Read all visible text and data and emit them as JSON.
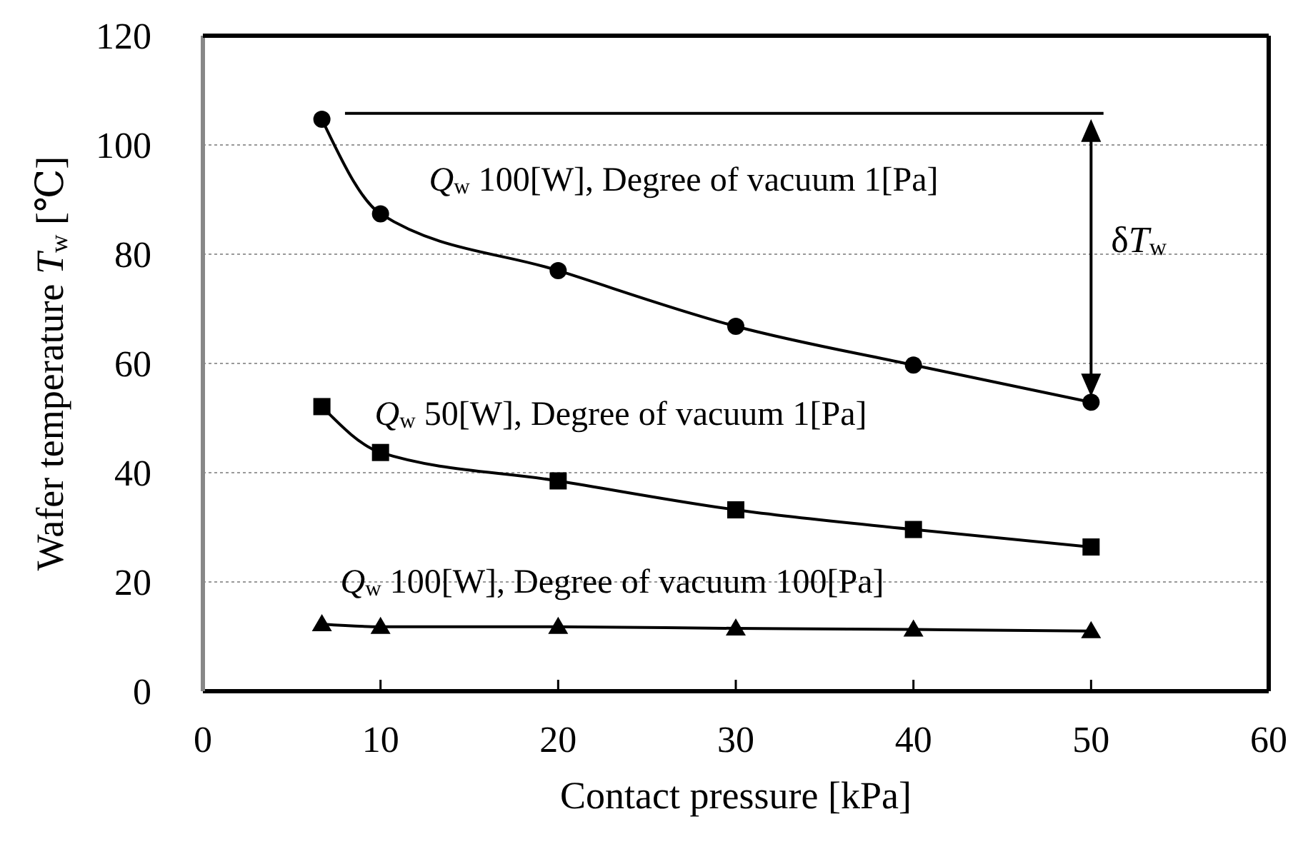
{
  "chart_data": {
    "type": "line",
    "xlabel": "Contact pressure [kPa]",
    "ylabel": "Wafer temperature T$_{w}$ [℃]",
    "xlim": [
      0,
      60
    ],
    "xticks": [
      0,
      10,
      20,
      30,
      40,
      50,
      60
    ],
    "ylim": [
      0,
      120
    ],
    "yticks": [
      0,
      20,
      40,
      60,
      80,
      100,
      120
    ],
    "grid": "y",
    "line_style": "solid",
    "series": [
      {
        "name": "Q$_{w}$ 100[W], Degree of vacuum 1[Pa]",
        "color": "#000000",
        "marker": "circle",
        "x": [
          6.7,
          10,
          20,
          30,
          40,
          50
        ],
        "values": [
          104.7,
          87.4,
          77,
          66.8,
          59.7,
          52.9
        ]
      },
      {
        "name": "Q$_{w}$ 50[W], Degree of vacuum 1[Pa]",
        "color": "#000000",
        "marker": "square",
        "x": [
          6.7,
          10,
          20,
          30,
          40,
          50
        ],
        "values": [
          52.1,
          43.7,
          38.5,
          33.2,
          29.6,
          26.4
        ]
      },
      {
        "name": "Q$_{w}$ 100[W], Degree of vacuum 100[Pa]",
        "color": "#000000",
        "marker": "triangle",
        "x": [
          6.7,
          10,
          20,
          30,
          40,
          50
        ],
        "values": [
          12.3,
          11.8,
          11.8,
          11.5,
          11.3,
          11.0
        ]
      },
      {
        "color": "#000000",
        "marker": "none",
        "x": [
          8,
          50.7
        ],
        "values": [
          105.8,
          105.8
        ]
      }
    ],
    "annotations": [
      "δT$_{w}$"
    ]
  }
}
